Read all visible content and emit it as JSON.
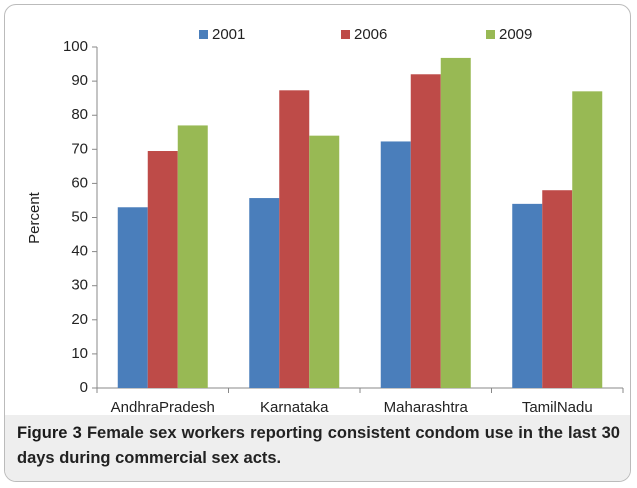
{
  "chart_data": {
    "type": "bar",
    "categories": [
      "AndhraPradesh",
      "Karnataka",
      "Maharashtra",
      "TamilNadu"
    ],
    "series": [
      {
        "name": "2001",
        "color": "#4a7ebb",
        "values": [
          53,
          55.7,
          72.3,
          54
        ]
      },
      {
        "name": "2006",
        "color": "#be4b48",
        "values": [
          69.5,
          87.3,
          92,
          58
        ]
      },
      {
        "name": "2009",
        "color": "#98b954",
        "values": [
          77,
          74,
          96.8,
          87
        ]
      }
    ],
    "ylabel": "Percent",
    "ylim": [
      0,
      100
    ],
    "yticks": [
      0,
      10,
      20,
      30,
      40,
      50,
      60,
      70,
      80,
      90,
      100
    ],
    "grid": false,
    "legend": "top",
    "figure_label": "Figure 3",
    "caption": "Female sex workers reporting consistent condom use in the last 30 days during commercial sex acts."
  }
}
